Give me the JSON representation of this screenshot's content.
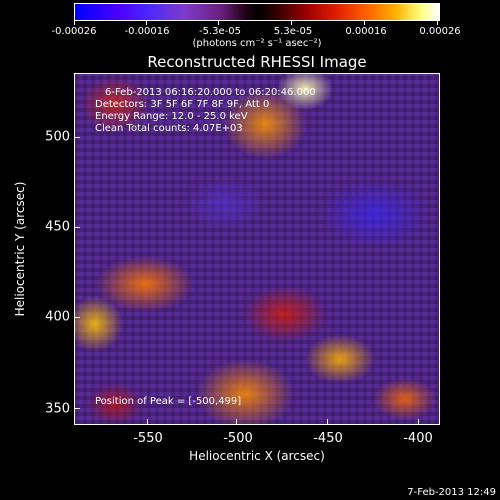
{
  "colorbar": {
    "tick_labels": [
      "-0.00026",
      "-0.00016",
      "-5.3e-05",
      "5.3e-05",
      "0.00016",
      "0.00026"
    ],
    "units": "(photons cm⁻² s⁻¹ asec⁻²)",
    "colormap": [
      "#0000ff",
      "#7f3cc8",
      "#000000",
      "#e02000",
      "#ffb000",
      "#ffffff"
    ]
  },
  "plot": {
    "title": "Reconstructed RHESSI Image",
    "info_lines": [
      "6-Feb-2013 06:16:20.000 to 06:20:46.000",
      "Detectors: 3F 5F 6F 7F 8F 9F, Att 0",
      "Energy Range: 12.0 - 25.0 keV",
      "Clean     Total counts: 4.07E+03"
    ],
    "peak_text": "Position of Peak = [-500,499]",
    "x_axis_title": "Heliocentric X (arcsec)",
    "y_axis_title": "Heliocentric Y (arcsec)",
    "x_ticks": [
      "-550",
      "-500",
      "-450",
      "-400"
    ],
    "y_ticks": [
      "500",
      "450",
      "400",
      "350"
    ]
  },
  "footer": {
    "timestamp": "7-Feb-2013 12:49"
  }
}
